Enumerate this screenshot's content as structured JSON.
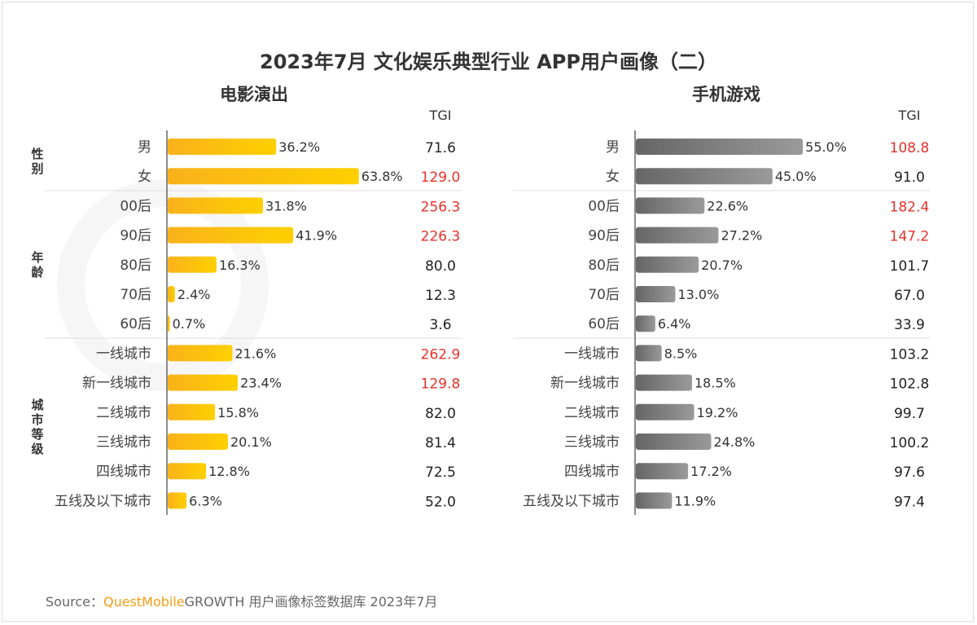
{
  "chart_data": [
    {
      "type": "bar",
      "orientation": "horizontal",
      "title": "电影演出",
      "tgi_header": "TGI",
      "bar_color": "#fbbf1e",
      "groups": [
        {
          "name": "性别",
          "categories": [
            "男",
            "女"
          ]
        },
        {
          "name": "年龄",
          "categories": [
            "00后",
            "90后",
            "80后",
            "70后",
            "60后"
          ]
        },
        {
          "name": "城市等级",
          "categories": [
            "一线城市",
            "新一线城市",
            "二线城市",
            "三线城市",
            "四线城市",
            "五线及以下城市"
          ]
        }
      ],
      "categories": [
        "男",
        "女",
        "00后",
        "90后",
        "80后",
        "70后",
        "60后",
        "一线城市",
        "新一线城市",
        "二线城市",
        "三线城市",
        "四线城市",
        "五线及以下城市"
      ],
      "values": [
        36.2,
        63.8,
        31.8,
        41.9,
        16.3,
        2.4,
        0.7,
        21.6,
        23.4,
        15.8,
        20.1,
        12.8,
        6.3
      ],
      "value_labels": [
        "36.2%",
        "63.8%",
        "31.8%",
        "41.9%",
        "16.3%",
        "2.4%",
        "0.7%",
        "21.6%",
        "23.4%",
        "15.8%",
        "20.1%",
        "12.8%",
        "6.3%"
      ],
      "tgi": [
        "71.6",
        "129.0",
        "256.3",
        "226.3",
        "80.0",
        "12.3",
        "3.6",
        "262.9",
        "129.8",
        "82.0",
        "81.4",
        "72.5",
        "52.0"
      ],
      "tgi_highlight": [
        false,
        true,
        true,
        true,
        false,
        false,
        false,
        true,
        true,
        false,
        false,
        false,
        false
      ]
    },
    {
      "type": "bar",
      "orientation": "horizontal",
      "title": "手机游戏",
      "tgi_header": "TGI",
      "bar_color": "#7a7a7a",
      "categories": [
        "男",
        "女",
        "00后",
        "90后",
        "80后",
        "70后",
        "60后",
        "一线城市",
        "新一线城市",
        "二线城市",
        "三线城市",
        "四线城市",
        "五线及以下城市"
      ],
      "values": [
        55.0,
        45.0,
        22.6,
        27.2,
        20.7,
        13.0,
        6.4,
        8.5,
        18.5,
        19.2,
        24.8,
        17.2,
        11.9
      ],
      "value_labels": [
        "55.0%",
        "45.0%",
        "22.6%",
        "27.2%",
        "20.7%",
        "13.0%",
        "6.4%",
        "8.5%",
        "18.5%",
        "19.2%",
        "24.8%",
        "17.2%",
        "11.9%"
      ],
      "tgi": [
        "108.8",
        "91.0",
        "182.4",
        "147.2",
        "101.7",
        "67.0",
        "33.9",
        "103.2",
        "102.8",
        "99.7",
        "100.2",
        "97.6",
        "97.4"
      ],
      "tgi_highlight": [
        true,
        false,
        true,
        true,
        false,
        false,
        false,
        false,
        false,
        false,
        false,
        false,
        false
      ]
    }
  ],
  "title": "2023年7月 文化娱乐典型行业 APP用户画像（二）",
  "highlight_color": "#e8302a",
  "watermark": "QUESTMOBILE",
  "source": {
    "prefix": "Source：",
    "brand": "QuestMobile",
    "rest": "GROWTH 用户画像标签数据库 2023年7月"
  }
}
